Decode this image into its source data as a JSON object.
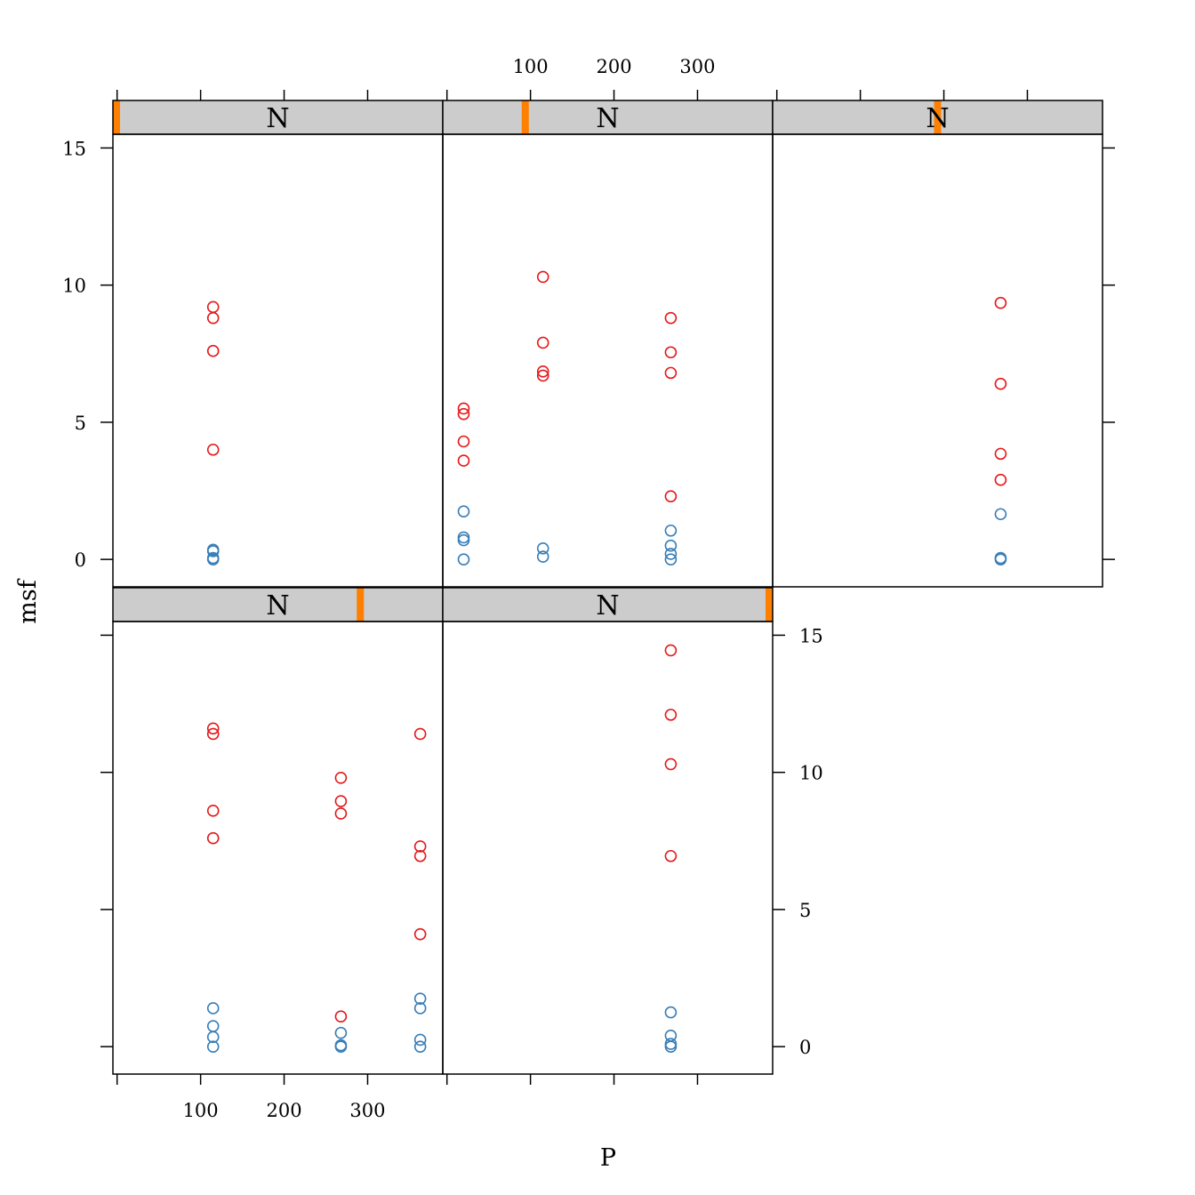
{
  "chart_data": {
    "type": "scatter",
    "layout": "lattice-trellis",
    "xlabel": "P",
    "ylabel": "msf",
    "xlim": [
      -5,
      390
    ],
    "ylim": [
      -1,
      15.5
    ],
    "x_ticks": [
      100,
      200,
      300
    ],
    "y_ticks": [
      0,
      5,
      10,
      15
    ],
    "grid": false,
    "colors": {
      "red_series": "#e41a1c",
      "blue_series": "#377eb8",
      "strip_bg": "#cccccc",
      "strip_marker": "#ff7f00"
    },
    "panels": [
      {
        "strip_label": "N",
        "strip_level": 0.0,
        "red": [
          [
            115,
            9.2
          ],
          [
            115,
            8.8
          ],
          [
            115,
            7.6
          ],
          [
            115,
            4.0
          ]
        ],
        "blue": [
          [
            115,
            0.35
          ],
          [
            115,
            0.3
          ],
          [
            115,
            0.05
          ],
          [
            115,
            0.0
          ]
        ]
      },
      {
        "strip_label": "N",
        "strip_level": 0.25,
        "red": [
          [
            20,
            5.5
          ],
          [
            20,
            5.3
          ],
          [
            20,
            4.3
          ],
          [
            20,
            3.6
          ],
          [
            115,
            10.3
          ],
          [
            115,
            7.9
          ],
          [
            115,
            6.85
          ],
          [
            115,
            6.7
          ],
          [
            268,
            8.8
          ],
          [
            268,
            7.55
          ],
          [
            268,
            6.8
          ],
          [
            268,
            2.3
          ]
        ],
        "blue": [
          [
            20,
            1.75
          ],
          [
            20,
            0.8
          ],
          [
            20,
            0.7
          ],
          [
            20,
            0.0
          ],
          [
            115,
            0.4
          ],
          [
            115,
            0.1
          ],
          [
            268,
            1.05
          ],
          [
            268,
            0.5
          ],
          [
            268,
            0.2
          ],
          [
            268,
            0.0
          ]
        ]
      },
      {
        "strip_label": "N",
        "strip_level": 0.5,
        "red": [
          [
            268,
            9.35
          ],
          [
            268,
            6.4
          ],
          [
            268,
            3.85
          ],
          [
            268,
            2.9
          ]
        ],
        "blue": [
          [
            268,
            1.65
          ],
          [
            268,
            0.05
          ],
          [
            268,
            0.0
          ]
        ]
      },
      {
        "strip_label": "N",
        "strip_level": 0.75,
        "red": [
          [
            115,
            11.6
          ],
          [
            115,
            11.4
          ],
          [
            115,
            8.6
          ],
          [
            115,
            7.6
          ],
          [
            268,
            9.8
          ],
          [
            268,
            8.95
          ],
          [
            268,
            8.5
          ],
          [
            268,
            1.1
          ],
          [
            363,
            11.4
          ],
          [
            363,
            7.3
          ],
          [
            363,
            6.95
          ],
          [
            363,
            4.1
          ]
        ],
        "blue": [
          [
            115,
            1.4
          ],
          [
            115,
            0.75
          ],
          [
            115,
            0.35
          ],
          [
            115,
            0.0
          ],
          [
            268,
            0.5
          ],
          [
            268,
            0.05
          ],
          [
            268,
            0.0
          ],
          [
            363,
            1.75
          ],
          [
            363,
            1.4
          ],
          [
            363,
            0.25
          ],
          [
            363,
            0.0
          ]
        ]
      },
      {
        "strip_label": "N",
        "strip_level": 1.0,
        "red": [
          [
            268,
            14.45
          ],
          [
            268,
            12.1
          ],
          [
            268,
            10.3
          ],
          [
            268,
            6.95
          ]
        ],
        "blue": [
          [
            268,
            1.25
          ],
          [
            268,
            0.4
          ],
          [
            268,
            0.1
          ],
          [
            268,
            0.0
          ]
        ]
      }
    ]
  }
}
